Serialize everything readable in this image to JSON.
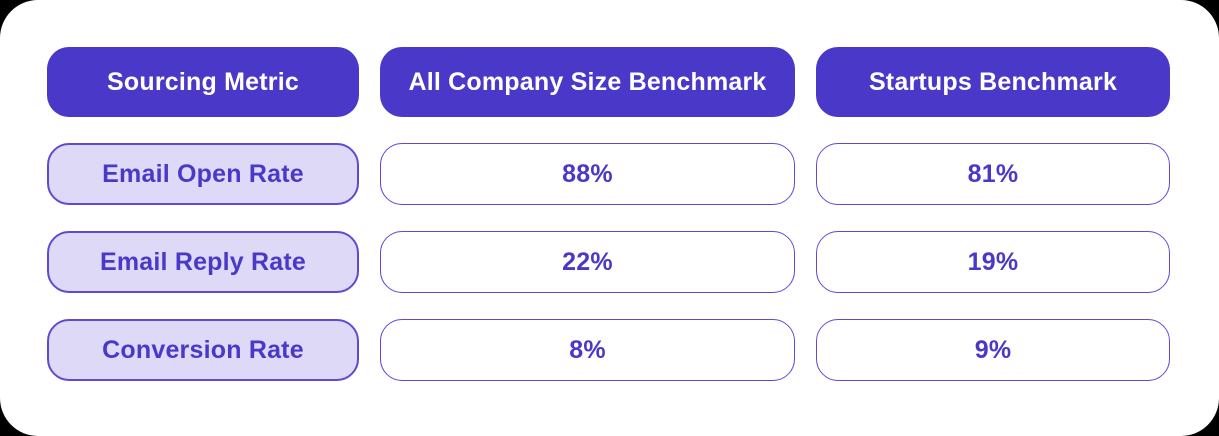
{
  "colors": {
    "accent": "#4a38c8",
    "label_bg": "#ddd9f6",
    "border": "#5d4cd2",
    "card_bg": "#ffffff"
  },
  "table": {
    "columns": [
      {
        "header": "Sourcing Metric"
      },
      {
        "header": "All Company Size Benchmark"
      },
      {
        "header": "Startups Benchmark"
      }
    ],
    "rows": [
      {
        "metric": "Email Open Rate",
        "all_company": "88%",
        "startups": "81%"
      },
      {
        "metric": "Email Reply Rate",
        "all_company": "22%",
        "startups": "19%"
      },
      {
        "metric": "Conversion Rate",
        "all_company": "8%",
        "startups": "9%"
      }
    ]
  },
  "chart_data": {
    "type": "table",
    "title": "",
    "columns": [
      "Sourcing Metric",
      "All Company Size Benchmark",
      "Startups Benchmark"
    ],
    "categories": [
      "Email Open Rate",
      "Email Reply Rate",
      "Conversion Rate"
    ],
    "series": [
      {
        "name": "All Company Size Benchmark",
        "values": [
          88,
          22,
          8
        ]
      },
      {
        "name": "Startups Benchmark",
        "values": [
          81,
          19,
          9
        ]
      }
    ],
    "unit": "%"
  }
}
